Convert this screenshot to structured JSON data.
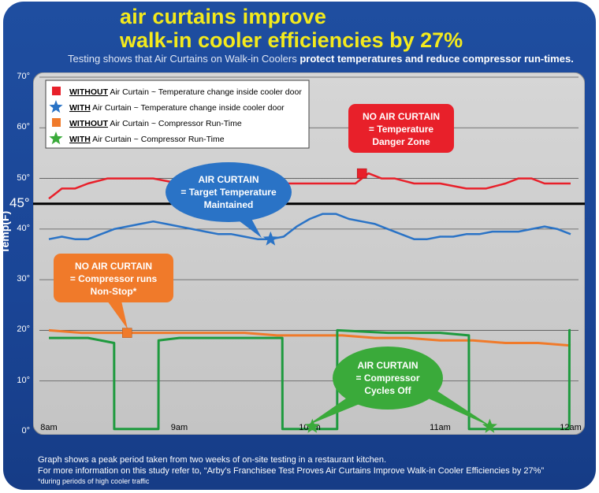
{
  "header": {
    "title_line1": "air curtains improve",
    "title_line2": "walk-in cooler efficiencies by 27%",
    "subtitle_a": "Testing shows that Air Curtains on Walk-in Coolers ",
    "subtitle_b": "protect temperatures and reduce compressor run-times."
  },
  "footer": {
    "line1": "Graph shows a peak period taken from two weeks of on-site testing in a restaurant kitchen.",
    "line2": "For more information on this study refer to, “Arby’s Franchisee Test Proves Air Curtains Improve Walk-in Cooler Efficiencies by 27%”",
    "line3": "*during periods of high cooler traffic"
  },
  "legend": [
    {
      "bold": "WITHOUT",
      "rest": " Air Curtain ~ Temperature change inside cooler door",
      "marker": "square",
      "color": "#e8202a"
    },
    {
      "bold": "WITH",
      "rest": " Air Curtain ~ Temperature change inside cooler door",
      "marker": "star",
      "color": "#2a73c6"
    },
    {
      "bold": "WITHOUT",
      "rest": " Air Curtain ~ Compressor Run-Time",
      "marker": "square",
      "color": "#f07a2a"
    },
    {
      "bold": "WITH",
      "rest": " Air Curtain ~ Compressor Run-Time",
      "marker": "star",
      "color": "#3aaa3a"
    }
  ],
  "callouts": {
    "red": [
      "NO AIR CURTAIN",
      "= Temperature",
      "Danger Zone"
    ],
    "blue": [
      "AIR CURTAIN",
      "= Target Temperature",
      "Maintained"
    ],
    "orange": [
      "NO AIR CURTAIN",
      "= Compressor runs",
      "Non-Stop*"
    ],
    "green": [
      "AIR CURTAIN",
      "= Compressor",
      "Cycles Off"
    ]
  },
  "chart_data": {
    "type": "line",
    "ylabel": "Temp(F)",
    "ylim": [
      0,
      70
    ],
    "xlim": [
      8,
      12
    ],
    "y_ticks": [
      "0°",
      "10°",
      "20°",
      "30°",
      "40°",
      "50°",
      "60°",
      "70°"
    ],
    "x_ticks": [
      "8am",
      "9am",
      "10am",
      "11am",
      "12am"
    ],
    "reference_line": {
      "value": 45,
      "label": "45°"
    },
    "colors": {
      "red": "#e8202a",
      "blue": "#2a73c6",
      "orange": "#f07a2a",
      "green": "#1e9a3e",
      "refline": "#000000"
    },
    "series": [
      {
        "name": "WITHOUT Air Curtain ~ Temperature change inside cooler door",
        "x": [
          8.0,
          8.05,
          8.1,
          8.2,
          8.3,
          8.45,
          8.6,
          8.8,
          9.0,
          9.2,
          9.4,
          9.6,
          9.8,
          10.0,
          10.2,
          10.35,
          10.45,
          10.55,
          10.65,
          10.8,
          11.0,
          11.2,
          11.35,
          11.5,
          11.6,
          11.7,
          11.8,
          11.9,
          12.0
        ],
        "y": [
          46,
          47,
          48,
          48,
          49,
          50,
          50,
          50,
          49,
          49,
          49,
          49,
          49,
          49,
          49,
          49,
          51,
          50,
          50,
          49,
          49,
          48,
          48,
          49,
          50,
          50,
          49,
          49,
          49
        ]
      },
      {
        "name": "WITH Air Curtain ~ Temperature change inside cooler door",
        "x": [
          8.0,
          8.1,
          8.2,
          8.3,
          8.4,
          8.5,
          8.6,
          8.7,
          8.8,
          8.9,
          9.0,
          9.1,
          9.2,
          9.3,
          9.4,
          9.5,
          9.6,
          9.7,
          9.8,
          9.9,
          10.0,
          10.1,
          10.2,
          10.3,
          10.4,
          10.5,
          10.6,
          10.7,
          10.8,
          10.9,
          11.0,
          11.1,
          11.2,
          11.3,
          11.4,
          11.5,
          11.6,
          11.7,
          11.8,
          11.9,
          12.0
        ],
        "y": [
          38,
          38.5,
          38,
          38,
          39,
          40,
          40.5,
          41,
          41.5,
          41,
          40.5,
          40,
          39.5,
          39,
          39,
          38.5,
          38,
          38,
          38.5,
          40.5,
          42,
          43,
          43,
          42,
          41.5,
          41,
          40,
          39,
          38,
          38,
          38.5,
          38.5,
          39,
          39,
          39.5,
          39.5,
          39.5,
          40,
          40.5,
          40,
          39
        ]
      },
      {
        "name": "WITHOUT Air Curtain ~ Compressor Run-Time",
        "x": [
          8.0,
          8.25,
          8.5,
          8.75,
          9.0,
          9.25,
          9.5,
          9.75,
          10.0,
          10.25,
          10.5,
          10.75,
          11.0,
          11.25,
          11.5,
          11.75,
          12.0
        ],
        "y": [
          20,
          19.5,
          19.5,
          19.5,
          19.5,
          19.5,
          19.5,
          19,
          19,
          19,
          18.5,
          18.5,
          18,
          18,
          17.5,
          17.5,
          17
        ]
      },
      {
        "name": "WITH Air Curtain ~ Compressor Run-Time",
        "x": [
          8.0,
          8.3,
          8.5,
          8.501,
          8.84,
          8.841,
          9.0,
          9.5,
          9.79,
          9.791,
          10.21,
          10.211,
          10.6,
          11.0,
          11.22,
          11.221,
          11.99,
          11.991,
          12.0
        ],
        "y": [
          18.5,
          18.5,
          17.5,
          0.5,
          0.5,
          18,
          18.5,
          18.5,
          18.5,
          0.5,
          0.5,
          20,
          19.5,
          19.5,
          19,
          0.5,
          0.5,
          20,
          20
        ]
      }
    ]
  }
}
